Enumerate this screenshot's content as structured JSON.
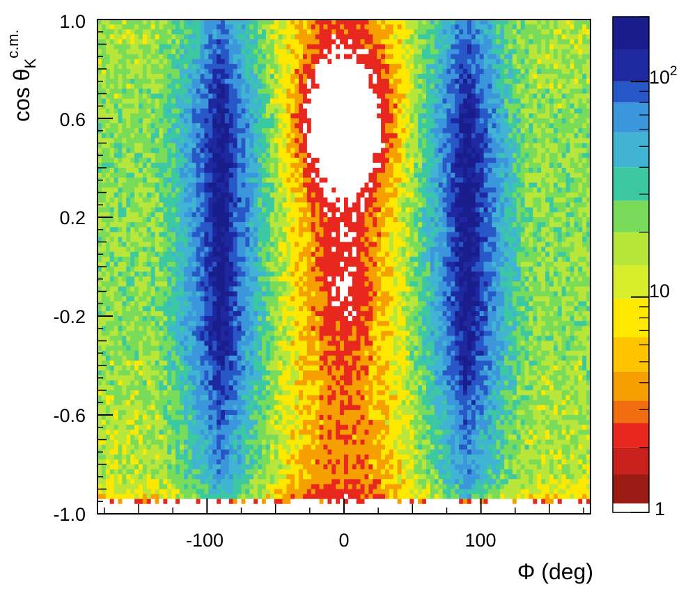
{
  "chart_data": {
    "type": "heatmap",
    "title": "",
    "xlabel": "Φ (deg)",
    "ylabel_main": "cos θ",
    "ylabel_sub": "K",
    "ylabel_sup": "c.m.",
    "xlim": [
      -180,
      180
    ],
    "ylim": [
      -1.0,
      1.0
    ],
    "x_ticks": [
      {
        "value": -100,
        "label": "-100"
      },
      {
        "value": 0,
        "label": "0"
      },
      {
        "value": 100,
        "label": "100"
      }
    ],
    "y_ticks": [
      {
        "value": -1.0,
        "label": "-1.0"
      },
      {
        "value": -0.6,
        "label": "-0.6"
      },
      {
        "value": -0.2,
        "label": "-0.2"
      },
      {
        "value": 0.2,
        "label": "0.2"
      },
      {
        "value": 0.6,
        "label": "0.6"
      },
      {
        "value": 1.0,
        "label": "1.0"
      }
    ],
    "colorbar": {
      "scale": "log",
      "range": [
        1,
        200
      ],
      "labels": [
        {
          "value": 1,
          "label": "1"
        },
        {
          "value": 10,
          "label": "10"
        },
        {
          "value": 100,
          "label": "10",
          "sup": "2"
        }
      ]
    },
    "features": [
      {
        "name": "high-density band",
        "phi_center": -100,
        "cos_range": [
          -0.7,
          0.85
        ],
        "counts": "~100-200"
      },
      {
        "name": "high-density band",
        "phi_center": 100,
        "cos_range": [
          -0.7,
          0.85
        ],
        "counts": "~100-200"
      },
      {
        "name": "low-count region",
        "phi_center": 0,
        "cos_range": [
          0.3,
          0.85
        ],
        "counts": "<1"
      },
      {
        "name": "sparse forward-cut row",
        "cos_range": [
          -0.97,
          -0.93
        ],
        "counts": "~1-3"
      }
    ]
  },
  "colors": {
    "white": "#ffffff",
    "red": "#e8281e",
    "orange": "#f5a000",
    "yellow": "#ffe800",
    "yellowgreen": "#b8e63a",
    "green": "#78dc5a",
    "teal": "#3cc8a0",
    "cyan": "#40b4d2",
    "lightblue": "#3c96dc",
    "blue": "#2858c8",
    "darkblue": "#1e28a0",
    "navy": "#1a1e8c"
  }
}
